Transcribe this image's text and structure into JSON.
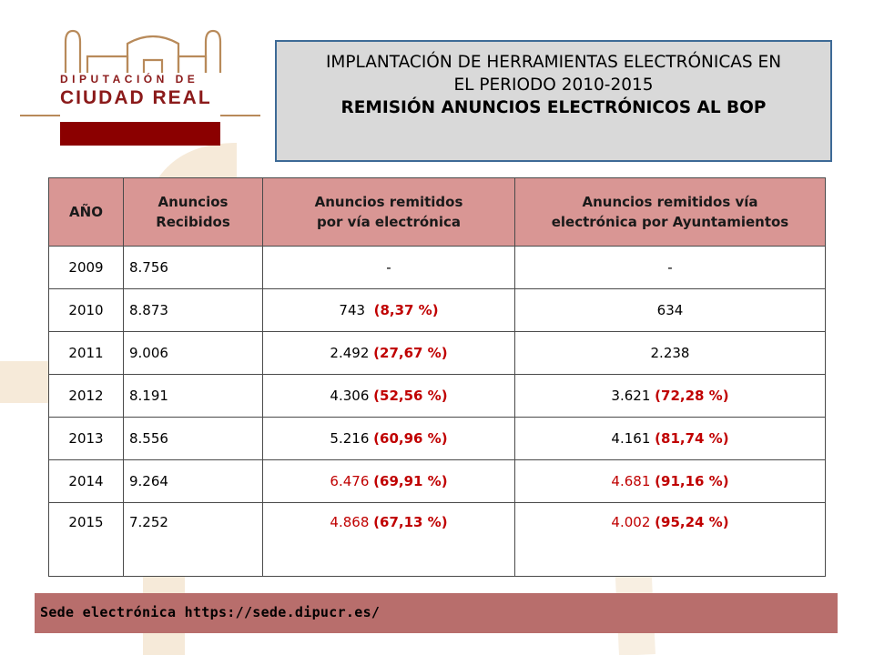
{
  "logo": {
    "line1": "DIPUTACIÓN DE",
    "line2": "CIUDAD REAL"
  },
  "title": {
    "line1": "IMPLANTACIÓN DE HERRAMIENTAS  ELECTRÓNICAS EN",
    "line2": "EL PERIODO 2010-2015",
    "line3": "REMISIÓN ANUNCIOS ELECTRÓNICOS AL BOP"
  },
  "table": {
    "headers": [
      {
        "line1": "AÑO",
        "line2": ""
      },
      {
        "line1": "Anuncios",
        "line2": "Recibidos"
      },
      {
        "line1": "Anuncios remitidos",
        "line2": "por vía electrónica"
      },
      {
        "line1": "Anuncios remitidos vía",
        "line2": "electrónica por Ayuntamientos"
      }
    ],
    "rows": [
      {
        "year": "2009",
        "received": "8.756",
        "remitted_num": "-",
        "remitted_pct": "",
        "ayt_num": "-",
        "ayt_pct": ""
      },
      {
        "year": "2010",
        "received": "8.873",
        "remitted_num": "743",
        "remitted_pct": "(8,37 %)",
        "ayt_num": "634",
        "ayt_pct": ""
      },
      {
        "year": "2011",
        "received": "9.006",
        "remitted_num": "2.492",
        "remitted_pct": "(27,67 %)",
        "ayt_num": "2.238",
        "ayt_pct": ""
      },
      {
        "year": "2012",
        "received": "8.191",
        "remitted_num": "4.306",
        "remitted_pct": "(52,56 %)",
        "ayt_num": "3.621",
        "ayt_pct": "(72,28 %)"
      },
      {
        "year": "2013",
        "received": "8.556",
        "remitted_num": "5.216",
        "remitted_pct": "(60,96 %)",
        "ayt_num": "4.161",
        "ayt_pct": "(81,74 %)"
      },
      {
        "year": "2014",
        "received": "9.264",
        "remitted_num": "6.476",
        "remitted_pct": "(69,91 %)",
        "ayt_num": "4.681",
        "ayt_pct": "(91,16 %)"
      },
      {
        "year": "2015",
        "received": "7.252",
        "remitted_num": "4.868",
        "remitted_pct": "(67,13 %)",
        "ayt_num": "4.002",
        "ayt_pct": "(95,24 %)"
      }
    ]
  },
  "footer": {
    "text": "Sede electrónica https://sede.dipucr.es/"
  },
  "colors": {
    "header_fill": "#d99694",
    "accent_red": "#c00000",
    "footer_fill": "#b86e6c",
    "logo_red": "#8b0000",
    "title_border": "#3d6a96",
    "title_fill": "#d9d9d9"
  }
}
